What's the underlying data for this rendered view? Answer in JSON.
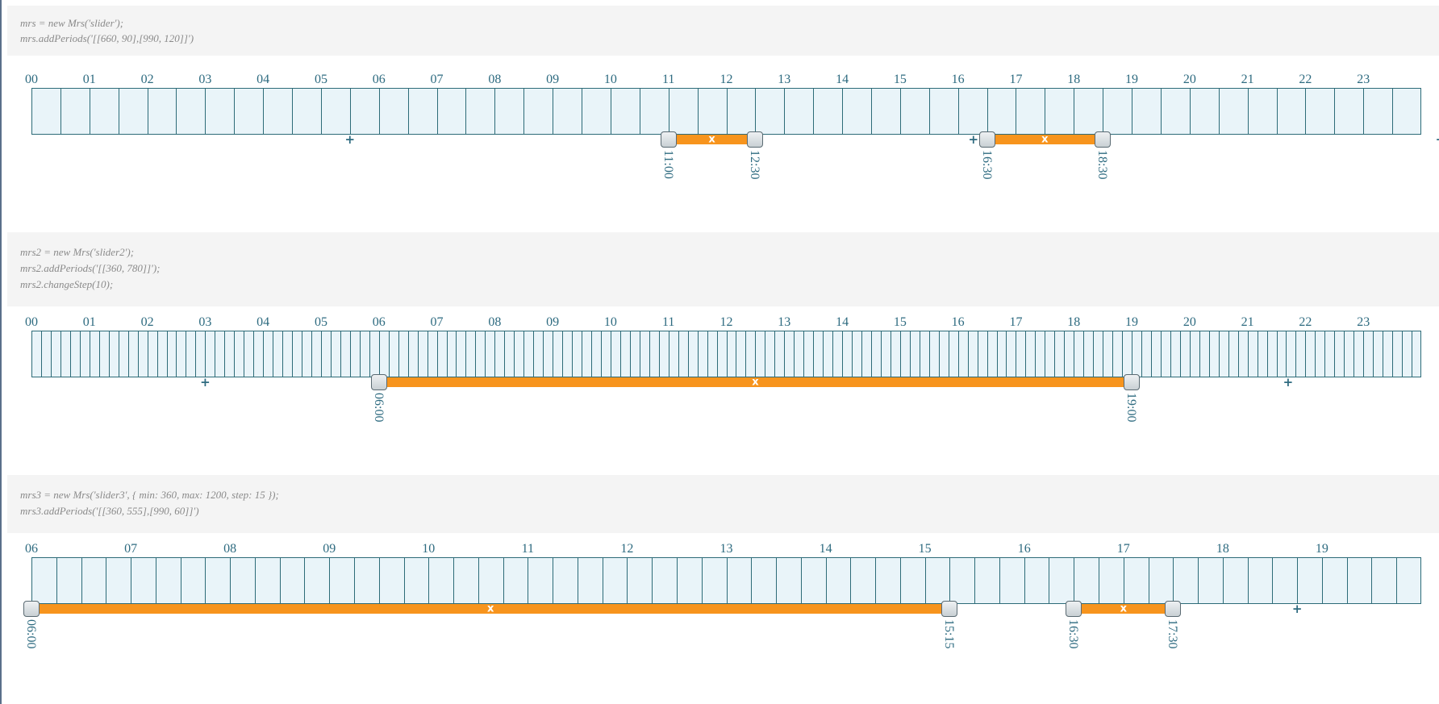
{
  "examples": [
    {
      "code": [
        "mrs = new Mrs('slider');",
        "mrs.addPeriods('[[660, 90],[990, 120]]')"
      ],
      "min": 0,
      "max": 1440,
      "cell_minutes": 30,
      "hour_labels": [
        "00",
        "01",
        "02",
        "03",
        "04",
        "05",
        "06",
        "07",
        "08",
        "09",
        "10",
        "11",
        "12",
        "13",
        "14",
        "15",
        "16",
        "17",
        "18",
        "19",
        "20",
        "21",
        "22",
        "23"
      ],
      "add_buttons_at_minutes": [
        330,
        976,
        1460
      ],
      "add_label": "+",
      "delete_label": "x",
      "periods": [
        {
          "start": 660,
          "end": 750,
          "start_label": "11:00",
          "end_label": "12:30"
        },
        {
          "start": 990,
          "end": 1110,
          "start_label": "16:30",
          "end_label": "18:30"
        }
      ]
    },
    {
      "code": [
        "mrs2 = new Mrs('slider2');",
        "mrs2.addPeriods('[[360, 780]]');",
        "mrs2.changeStep(10);"
      ],
      "min": 0,
      "max": 1440,
      "cell_minutes": 10,
      "hour_labels": [
        "00",
        "01",
        "02",
        "03",
        "04",
        "05",
        "06",
        "07",
        "08",
        "09",
        "10",
        "11",
        "12",
        "13",
        "14",
        "15",
        "16",
        "17",
        "18",
        "19",
        "20",
        "21",
        "22",
        "23"
      ],
      "add_buttons_at_minutes": [
        180,
        1302
      ],
      "add_label": "+",
      "delete_label": "x",
      "periods": [
        {
          "start": 360,
          "end": 1140,
          "start_label": "06:00",
          "end_label": "19:00"
        }
      ]
    },
    {
      "code": [
        "mrs3 = new Mrs('slider3', { min: 360, max: 1200, step: 15 });",
        "mrs3.addPeriods('[[360, 555],[990, 60]]')"
      ],
      "min": 360,
      "max": 1200,
      "cell_minutes": 15,
      "hour_labels": [
        "06",
        "07",
        "08",
        "09",
        "10",
        "11",
        "12",
        "13",
        "14",
        "15",
        "16",
        "17",
        "18",
        "19"
      ],
      "add_buttons_at_minutes": [
        1125
      ],
      "add_label": "+",
      "delete_label": "x",
      "periods": [
        {
          "start": 360,
          "end": 915,
          "start_label": "06:00",
          "end_label": "15:15"
        },
        {
          "start": 990,
          "end": 1050,
          "start_label": "16:30",
          "end_label": "17:30"
        }
      ]
    }
  ]
}
